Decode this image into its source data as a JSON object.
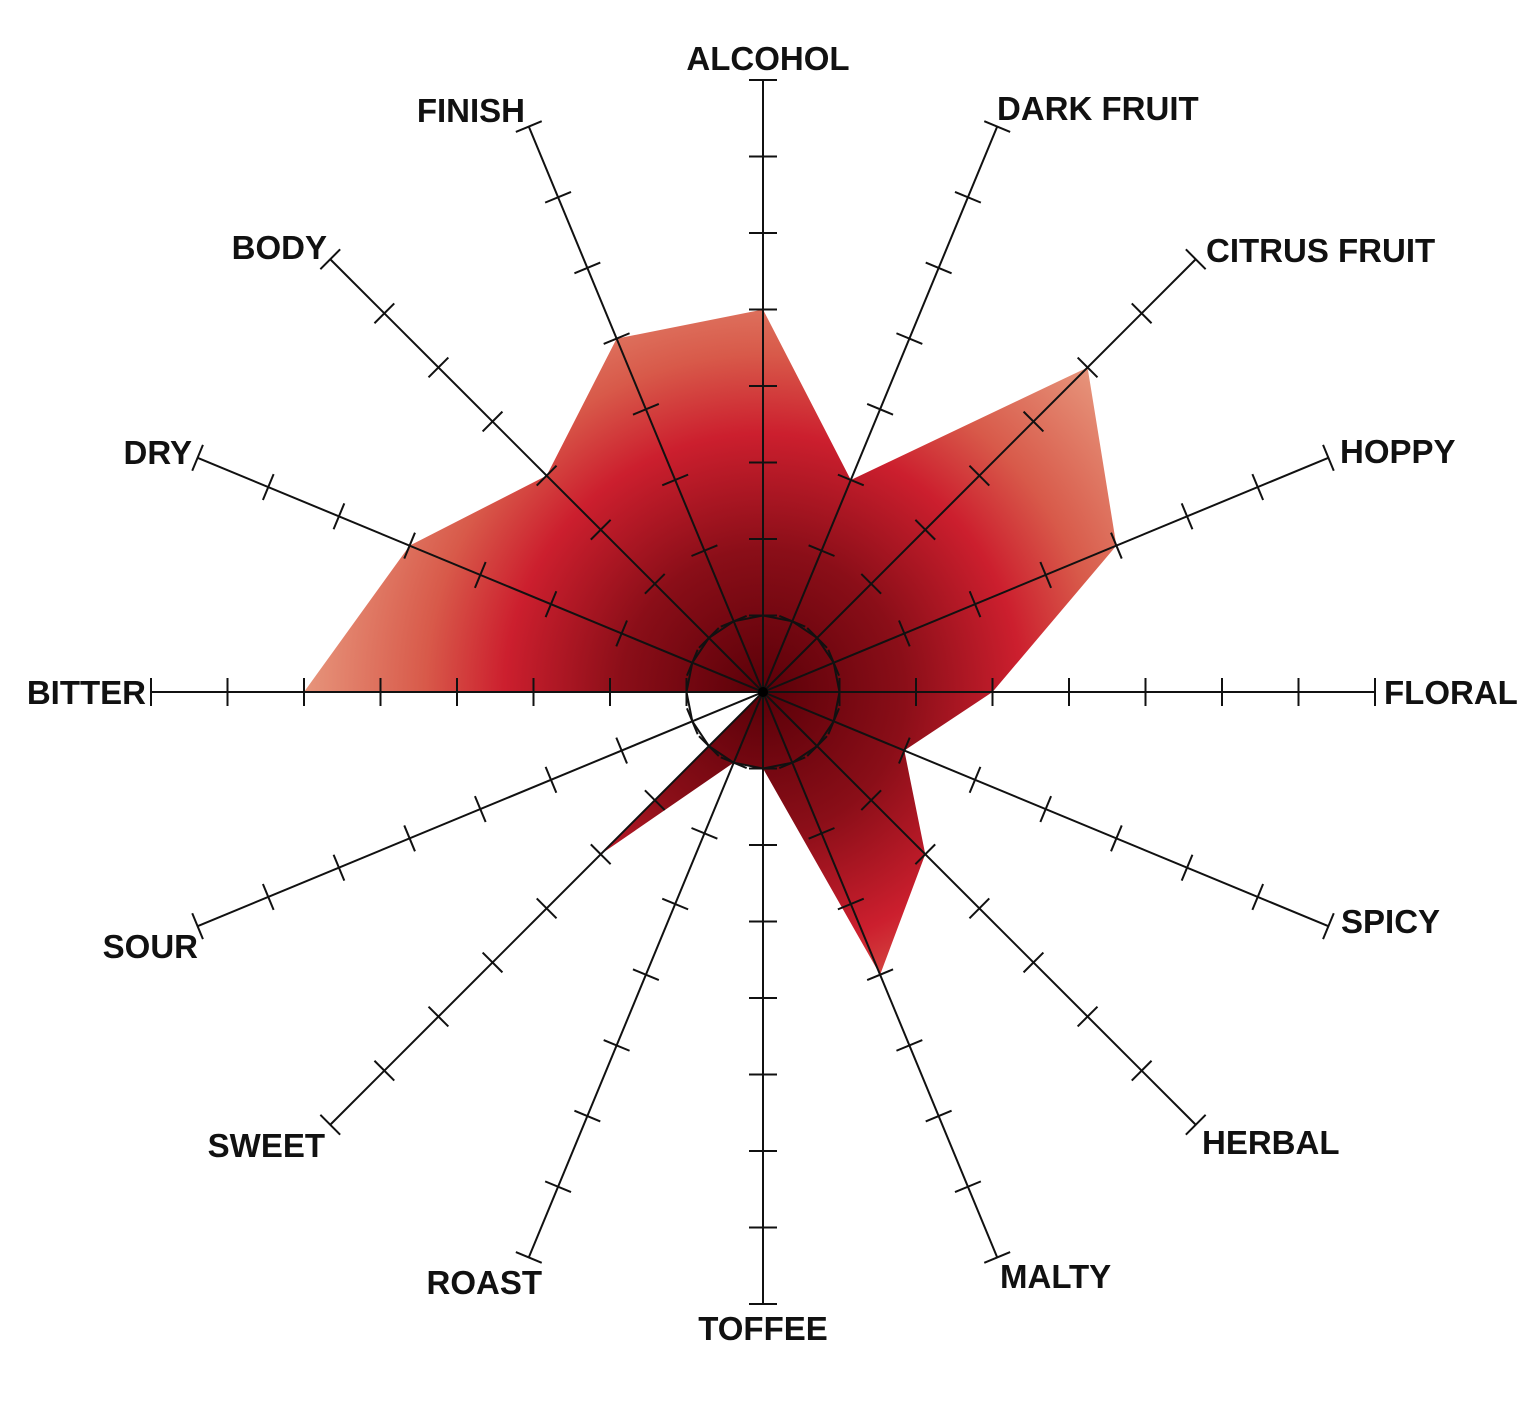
{
  "chart_data": {
    "type": "radar",
    "title": "",
    "axes": [
      "ALCOHOL",
      "DARK FRUIT",
      "CITRUS FRUIT",
      "HOPPY",
      "FLORAL",
      "SPICY",
      "HERBAL",
      "MALTY",
      "TOFFEE",
      "ROAST",
      "SWEET",
      "SOUR",
      "BITTER",
      "DRY",
      "BODY",
      "FINISH"
    ],
    "values": [
      5,
      3,
      6,
      5,
      3,
      2,
      3,
      4,
      1,
      1,
      3,
      0,
      6,
      5,
      4,
      5
    ],
    "range": [
      0,
      8
    ],
    "tick_step": 1,
    "grid": false,
    "colors": {
      "fill_center": "#5a0008",
      "fill_mid": "#cc1f2e",
      "fill_outer": "#d85a4a",
      "fill_edge": "#e89a80",
      "axis": "#111111"
    }
  }
}
